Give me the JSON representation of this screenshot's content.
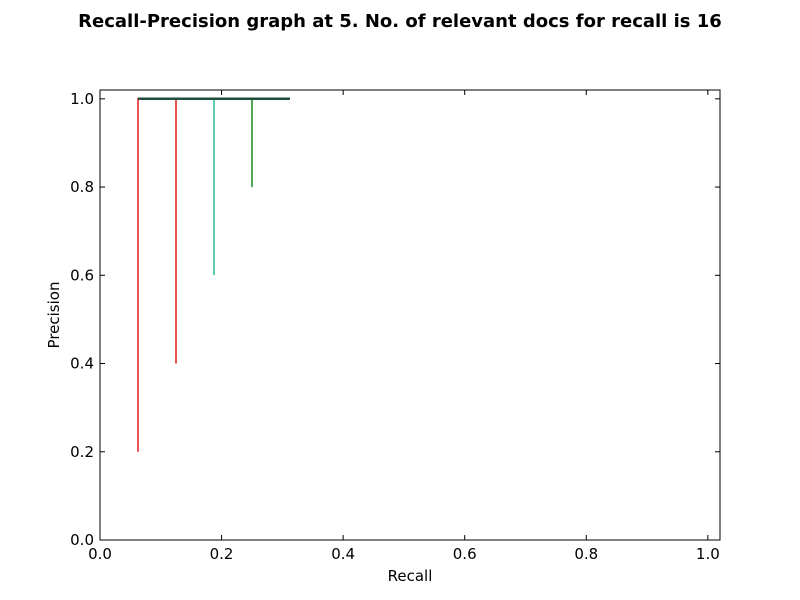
{
  "chart_data": {
    "type": "line",
    "title": "Recall-Precision graph at 5. No. of relevant docs for recall is 16",
    "xlabel": "Recall",
    "ylabel": "Precision",
    "xlim": [
      0.0,
      1.02
    ],
    "ylim": [
      0.0,
      1.02
    ],
    "x_ticks": [
      0.0,
      0.2,
      0.4,
      0.6,
      0.8,
      1.0
    ],
    "x_tick_labels": [
      "0.0",
      "0.2",
      "0.4",
      "0.6",
      "0.8",
      "1.0"
    ],
    "y_ticks": [
      0.0,
      0.2,
      0.4,
      0.6,
      0.8,
      1.0
    ],
    "y_tick_labels": [
      "0.0",
      "0.2",
      "0.4",
      "0.6",
      "0.8",
      "1.0"
    ],
    "grid": false,
    "legend": "none",
    "series": [
      {
        "color": "#e31a1c",
        "x": [
          0.0625,
          0.0625,
          0.0625,
          0.125,
          0.125,
          0.125,
          0.1875,
          0.25,
          0.3125
        ],
        "y": [
          0.2,
          1.0,
          1.0,
          1.0,
          0.4,
          1.0,
          1.0,
          1.0,
          1.0
        ]
      },
      {
        "color": "#2ab99a",
        "x": [
          0.1875,
          0.1875,
          0.1875
        ],
        "y": [
          0.6,
          1.0,
          1.0
        ]
      },
      {
        "color": "#1a8a1a",
        "x": [
          0.25,
          0.25,
          0.25
        ],
        "y": [
          0.8,
          1.0,
          1.0
        ]
      },
      {
        "color": "#1f4f3a",
        "x": [
          0.0625,
          0.3125
        ],
        "y": [
          1.0,
          1.0
        ]
      }
    ]
  }
}
